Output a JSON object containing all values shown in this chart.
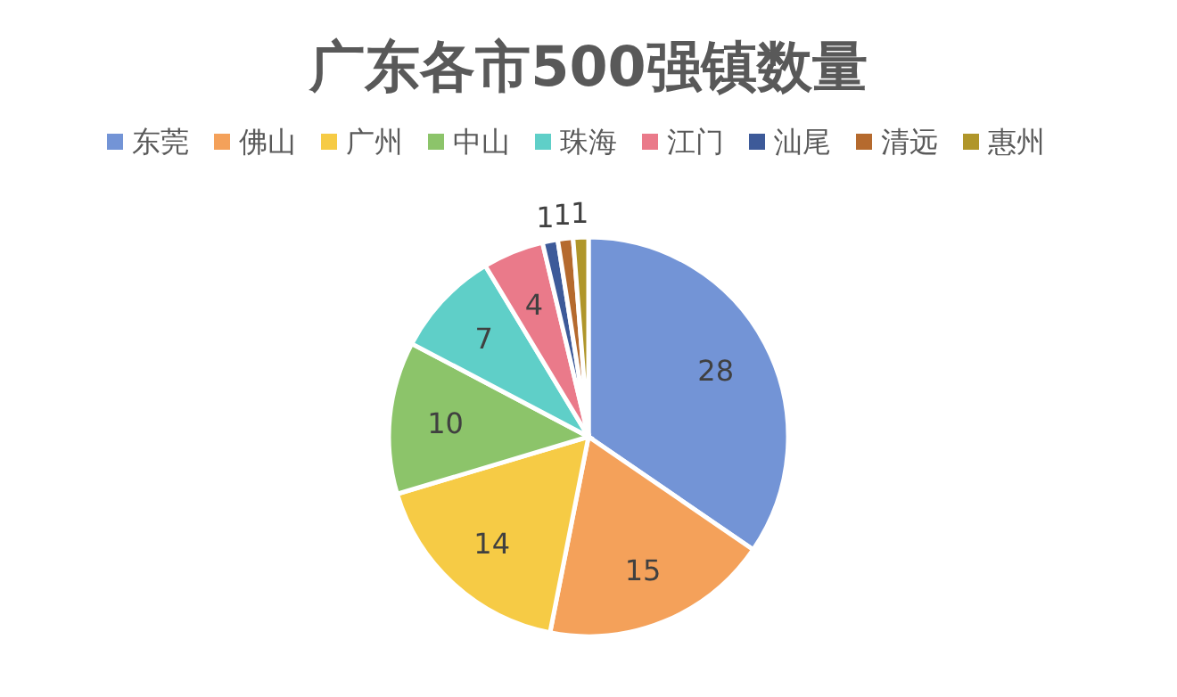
{
  "chart_data": {
    "type": "pie",
    "title": "广东各市500强镇数量",
    "categories": [
      "东莞",
      "佛山",
      "广州",
      "中山",
      "珠海",
      "江门",
      "汕尾",
      "清远",
      "惠州"
    ],
    "values": [
      28,
      15,
      14,
      10,
      7,
      4,
      1,
      1,
      1
    ],
    "colors": [
      "#7394d6",
      "#f4a15a",
      "#f6cb45",
      "#8cc46a",
      "#5fcfc8",
      "#ea7a8a",
      "#3d5a99",
      "#b56a2e",
      "#b0962a"
    ],
    "data_labels": true,
    "legend": "top"
  }
}
